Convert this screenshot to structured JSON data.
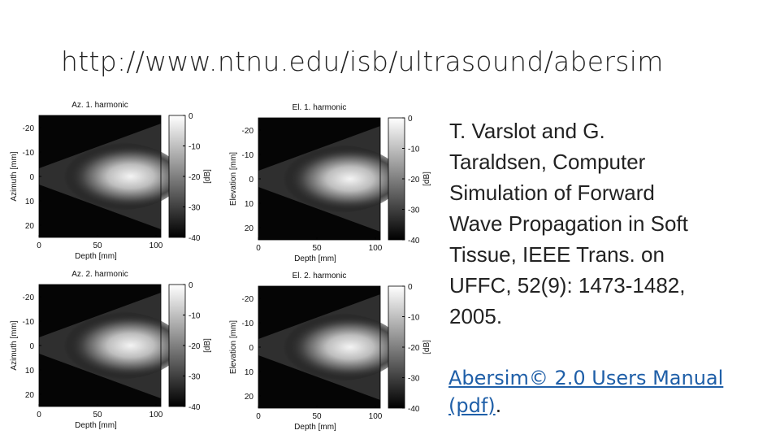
{
  "title": "http://www.ntnu.edu/isb/ultrasound/abersim",
  "figure": {
    "panels": [
      {
        "title": "Az. 1. harmonic",
        "ylabel": "Azimuth [mm]",
        "xlabel": "Depth [mm]",
        "yticks": [
          -20,
          -10,
          0,
          10,
          20
        ],
        "xticks": [
          0,
          50,
          100
        ],
        "cbar_ticks": [
          0,
          -10,
          -20,
          -30,
          -40
        ],
        "cbar_label": "[dB]"
      },
      {
        "title": "El. 1. harmonic",
        "ylabel": "Elevation [mm]",
        "xlabel": "Depth [mm]",
        "yticks": [
          -20,
          -10,
          0,
          10,
          20
        ],
        "xticks": [
          0,
          50,
          100
        ],
        "cbar_ticks": [
          0,
          -10,
          -20,
          -30,
          -40
        ],
        "cbar_label": "[dB]"
      },
      {
        "title": "Az. 2. harmonic",
        "ylabel": "Azimuth [mm]",
        "xlabel": "Depth [mm]",
        "yticks": [
          -20,
          -10,
          0,
          10,
          20
        ],
        "xticks": [
          0,
          50,
          100
        ],
        "cbar_ticks": [
          0,
          -10,
          -20,
          -30,
          -40
        ],
        "cbar_label": "[dB]"
      },
      {
        "title": "El. 2. harmonic",
        "ylabel": "Elevation [mm]",
        "xlabel": "Depth [mm]",
        "yticks": [
          -20,
          -10,
          0,
          10,
          20
        ],
        "xticks": [
          0,
          50,
          100
        ],
        "cbar_ticks": [
          0,
          -10,
          -20,
          -30,
          -40
        ],
        "cbar_label": "[dB]"
      }
    ]
  },
  "citation": {
    "lines": [
      "T. Varslot and G.",
      "Taraldsen, Computer",
      "Simulation of Forward",
      "Wave Propagation in Soft",
      "Tissue, IEEE Trans. on",
      "UFFC, 52(9): 1473-1482,",
      "2005."
    ]
  },
  "link": {
    "text": "Abersim© 2.0 Users Manual (pdf)",
    "suffix": "."
  }
}
